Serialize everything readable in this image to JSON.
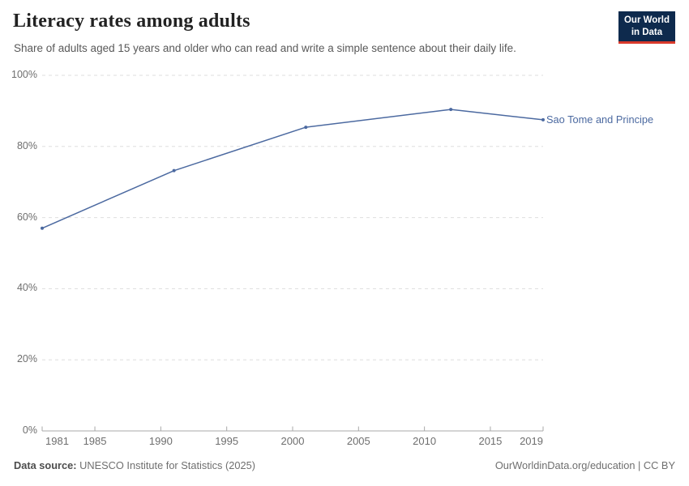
{
  "header": {
    "title": "Literacy rates among adults",
    "subtitle": "Share of adults aged 15 years and older who can read and write a simple sentence about their daily life.",
    "logo": {
      "line1": "Our World",
      "line2": "in Data",
      "bg_color": "#0e2a4d",
      "accent_color": "#d93a2b"
    }
  },
  "chart_data": {
    "type": "line",
    "title": "Literacy rates among adults",
    "xlabel": "",
    "ylabel": "",
    "xlim": [
      1981,
      2019
    ],
    "ylim": [
      0,
      100
    ],
    "grid": "horizontal-dashed",
    "x_tick_labels": [
      "1981",
      "1985",
      "1990",
      "1995",
      "2000",
      "2005",
      "2010",
      "2015",
      "2019"
    ],
    "x_tick_values": [
      1981,
      1985,
      1990,
      1995,
      2000,
      2005,
      2010,
      2015,
      2019
    ],
    "y_tick_labels": [
      "0%",
      "20%",
      "40%",
      "60%",
      "80%",
      "100%"
    ],
    "y_tick_values": [
      0,
      20,
      40,
      60,
      80,
      100
    ],
    "series": [
      {
        "name": "Sao Tome and Principe",
        "color": "#4b69a0",
        "x": [
          1981,
          1991,
          2001,
          2012,
          2019
        ],
        "values": [
          57.0,
          73.2,
          85.4,
          90.4,
          87.5
        ]
      }
    ],
    "colors": {
      "gridline": "#dedede",
      "axis": "#a8a8a8",
      "tick_label": "#6e6e6e"
    }
  },
  "footer": {
    "source_label": "Data source:",
    "source_text": " UNESCO Institute for Statistics (2025)",
    "credit": "OurWorldinData.org/education | CC BY"
  }
}
